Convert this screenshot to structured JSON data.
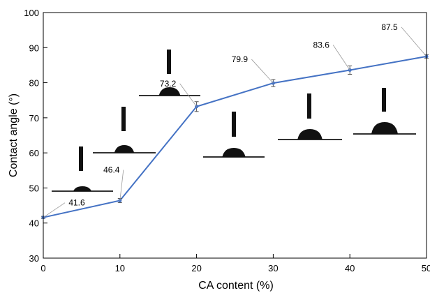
{
  "chart_data": {
    "type": "line",
    "title": "",
    "xlabel": "CA content (%)",
    "ylabel": "Contact angle (°)",
    "xlim": [
      0,
      50
    ],
    "ylim": [
      30,
      100
    ],
    "x_ticks": [
      0,
      10,
      20,
      30,
      40,
      50
    ],
    "y_ticks": [
      30,
      40,
      50,
      60,
      70,
      80,
      90,
      100
    ],
    "grid": false,
    "legend": "none",
    "series": [
      {
        "color": "#4472C4",
        "x": [
          0,
          10,
          20,
          30,
          40,
          50
        ],
        "y": [
          41.6,
          46.4,
          73.2,
          79.9,
          83.6,
          87.5
        ],
        "error": [
          0.3,
          0.6,
          1.4,
          1.0,
          1.2,
          0.5
        ]
      }
    ],
    "data_labels": [
      "41.6",
      "46.4",
      "73.2",
      "79.9",
      "83.6",
      "87.5"
    ]
  }
}
